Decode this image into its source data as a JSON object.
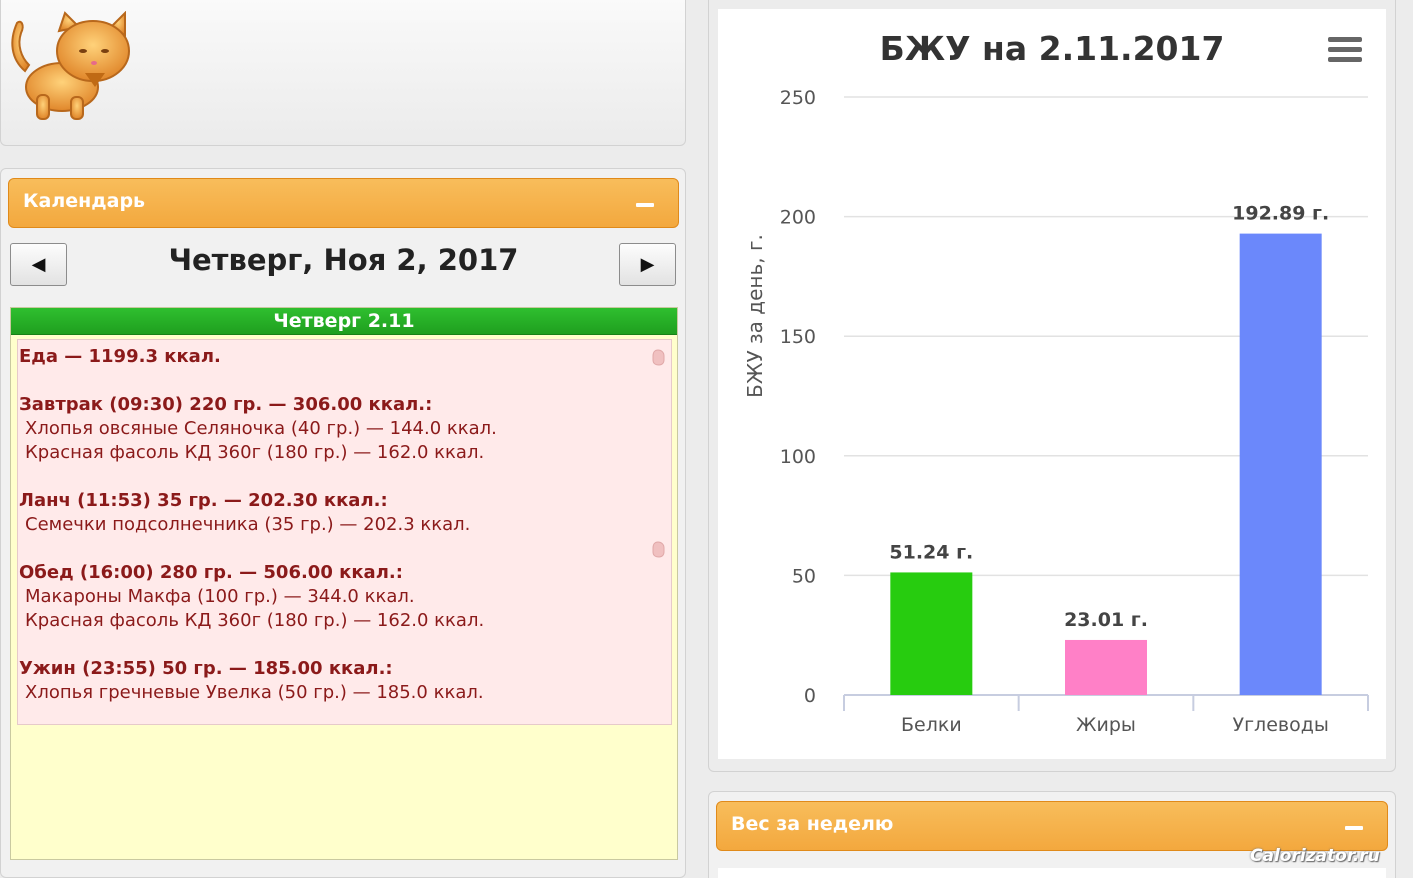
{
  "calendar": {
    "title": "Календарь",
    "date": "Четверг, Ноя 2, 2017",
    "prev_icon": "◀",
    "next_icon": "▶",
    "day_header": "Четверг 2.11",
    "lines": [
      {
        "text": "Еда — 1199.3 ккал.",
        "kind": "bold"
      },
      {
        "text": "",
        "kind": "gap"
      },
      {
        "text": "Завтрак (09:30) 220 гр. — 306.00 ккал.:",
        "kind": "bold"
      },
      {
        "text": "Хлопья овсяные Селяночка (40 гр.) — 144.0 ккал.",
        "kind": "item"
      },
      {
        "text": "Красная фасоль КД 360г (180 гр.) — 162.0 ккал.",
        "kind": "item"
      },
      {
        "text": "",
        "kind": "gap"
      },
      {
        "text": "Ланч (11:53) 35 гр. — 202.30 ккал.:",
        "kind": "bold"
      },
      {
        "text": "Семечки подсолнечника (35 гр.) — 202.3 ккал.",
        "kind": "item"
      },
      {
        "text": "",
        "kind": "gap"
      },
      {
        "text": "Обед (16:00) 280 гр. — 506.00 ккал.:",
        "kind": "bold"
      },
      {
        "text": "Макароны Макфа (100 гр.) — 344.0 ккал.",
        "kind": "item"
      },
      {
        "text": "Красная фасоль КД 360г (180 гр.) — 162.0 ккал.",
        "kind": "item"
      },
      {
        "text": "",
        "kind": "gap"
      },
      {
        "text": "Ужин (23:55) 50 гр. — 185.00 ккал.:",
        "kind": "bold"
      },
      {
        "text": "Хлопья гречневые Увелка (50 гр.) — 185.0 ккал.",
        "kind": "item"
      }
    ]
  },
  "weight_panel": {
    "title": "Вес за неделю"
  },
  "watermark": "Calorizator.ru",
  "colors": {
    "orange": "#f5b04a",
    "green_header": "#22a822",
    "entry_text": "#8b1a1a",
    "protein": "#27cc0f",
    "fat": "#ff80c7",
    "carbs": "#6b88fb"
  },
  "chart_data": {
    "type": "bar",
    "title": "БЖУ на 2.11.2017",
    "ylabel": "БЖУ за день, г.",
    "xlabel": "",
    "categories": [
      "Белки",
      "Жиры",
      "Углеводы"
    ],
    "values": [
      51.24,
      23.01,
      192.89
    ],
    "data_labels": [
      "51.24 г.",
      "23.01 г.",
      "192.89 г."
    ],
    "bar_colors": [
      "#27cc0f",
      "#ff80c7",
      "#6b88fb"
    ],
    "ylim": [
      0,
      250
    ],
    "yticks": [
      "0",
      "50",
      "100",
      "150",
      "200",
      "250"
    ],
    "grid": true,
    "legend": "none"
  }
}
